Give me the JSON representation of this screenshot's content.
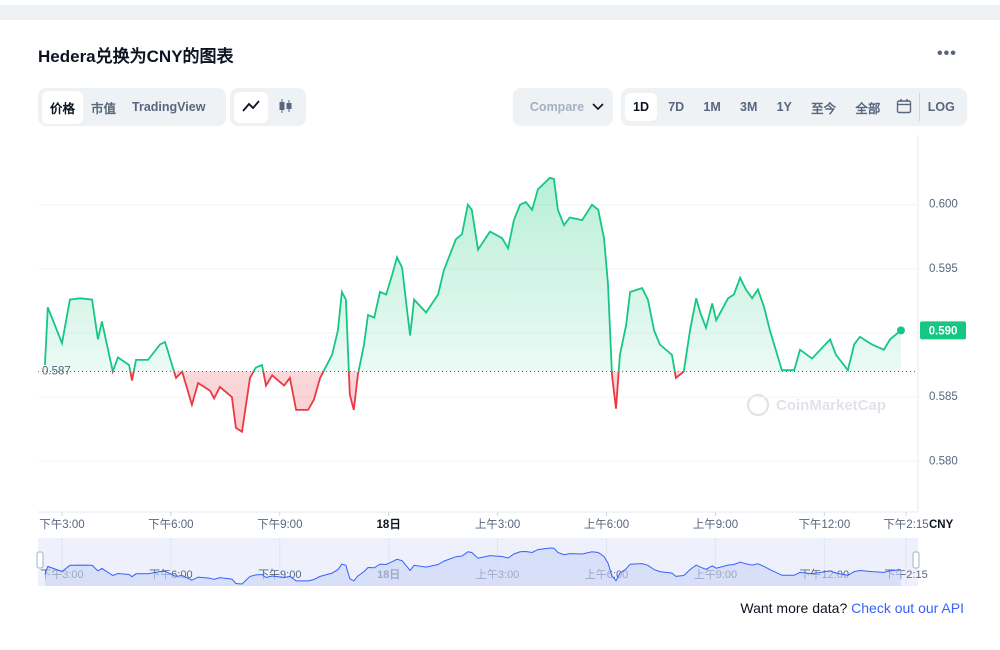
{
  "header": {
    "title": "Hedera兑换为CNY的图表"
  },
  "toolbar": {
    "tabs": [
      "价格",
      "市值",
      "TradingView"
    ],
    "compare": "Compare",
    "ranges": [
      "1D",
      "7D",
      "1M",
      "3M",
      "1Y",
      "至今",
      "全部"
    ],
    "log": "LOG"
  },
  "chart_data": {
    "type": "line",
    "x": [
      -0.47,
      -0.39,
      0,
      0.22,
      0.5,
      0.83,
      0.99,
      1.1,
      1.4,
      1.54,
      1.85,
      1.93,
      2.04,
      2.37,
      2.7,
      2.84,
      3.14,
      3.31,
      3.58,
      3.75,
      4.08,
      4.19,
      4.35,
      4.68,
      4.79,
      4.96,
      5.18,
      5.34,
      5.51,
      5.62,
      5.79,
      6.12,
      6.28,
      6.45,
      6.78,
      6.94,
      7.11,
      7.44,
      7.6,
      7.71,
      7.82,
      7.93,
      8.04,
      8.15,
      8.32,
      8.43,
      8.6,
      8.76,
      8.93,
      9.09,
      9.23,
      9.37,
      9.48,
      9.59,
      9.7,
      10.03,
      10.36,
      10.52,
      10.85,
      11.02,
      11.18,
      11.29,
      11.46,
      11.79,
      12.12,
      12.29,
      12.45,
      12.62,
      12.78,
      12.95,
      13.11,
      13.44,
      13.55,
      13.66,
      13.83,
      13.99,
      14.33,
      14.6,
      14.77,
      14.93,
      15.04,
      15.15,
      15.26,
      15.37,
      15.54,
      15.65,
      15.98,
      16.14,
      16.31,
      16.47,
      16.8,
      16.91,
      17.13,
      17.3,
      17.47,
      17.58,
      17.74,
      17.91,
      18.02,
      18.35,
      18.51,
      18.68,
      18.84,
      19.01,
      19.17,
      19.34,
      19.5,
      19.83,
      20.17,
      20.33,
      20.66,
      21.16,
      21.32,
      21.65,
      21.82,
      21.98,
      22.31,
      22.64,
      22.81,
      23.11
    ],
    "values": [
      0.5875,
      0.592,
      0.5892,
      0.5926,
      0.5927,
      0.5926,
      0.5895,
      0.5909,
      0.587,
      0.5881,
      0.5875,
      0.5863,
      0.5879,
      0.5879,
      0.5891,
      0.5893,
      0.5865,
      0.587,
      0.5844,
      0.5861,
      0.5855,
      0.5849,
      0.5858,
      0.585,
      0.5826,
      0.5823,
      0.5865,
      0.5873,
      0.5875,
      0.5859,
      0.5867,
      0.5859,
      0.5865,
      0.584,
      0.584,
      0.5848,
      0.5865,
      0.5883,
      0.5902,
      0.5932,
      0.5926,
      0.5852,
      0.584,
      0.5867,
      0.5891,
      0.5914,
      0.5912,
      0.5932,
      0.593,
      0.5945,
      0.5959,
      0.5951,
      0.5924,
      0.5898,
      0.5926,
      0.5916,
      0.593,
      0.5949,
      0.5973,
      0.5977,
      0.6,
      0.5996,
      0.5965,
      0.5979,
      0.5974,
      0.5966,
      0.5988,
      0.6,
      0.6002,
      0.5996,
      0.6012,
      0.6021,
      0.602,
      0.5996,
      0.5984,
      0.599,
      0.5988,
      0.6,
      0.5996,
      0.5974,
      0.5938,
      0.5867,
      0.5841,
      0.5883,
      0.5906,
      0.5932,
      0.5935,
      0.5926,
      0.5902,
      0.5891,
      0.5883,
      0.5865,
      0.587,
      0.5902,
      0.5927,
      0.5916,
      0.5904,
      0.5923,
      0.591,
      0.5927,
      0.593,
      0.5943,
      0.5934,
      0.5927,
      0.5934,
      0.592,
      0.5902,
      0.5871,
      0.5871,
      0.5887,
      0.588,
      0.5895,
      0.5883,
      0.5871,
      0.5891,
      0.5897,
      0.5891,
      0.5887,
      0.5895,
      0.5902
    ],
    "color_up": "#16c784",
    "color_down": "#ea3943",
    "reference": 0.587,
    "last_label": "0.590",
    "xlim": [
      -0.66,
      23.58
    ],
    "xticks": [
      {
        "value": 0,
        "label": "下午3:00"
      },
      {
        "value": 3,
        "label": "下午6:00"
      },
      {
        "value": 6,
        "label": "下午9:00"
      },
      {
        "value": 9,
        "label": "18日"
      },
      {
        "value": 12,
        "label": "上午3:00"
      },
      {
        "value": 15,
        "label": "上午6:00"
      },
      {
        "value": 18,
        "label": "上午9:00"
      },
      {
        "value": 21,
        "label": "下午12:00"
      },
      {
        "value": 23.25,
        "label": "下午2:15"
      }
    ],
    "ylim": [
      0.5762,
      0.6052
    ],
    "yticks": [
      {
        "value": 0.58,
        "label": "0.580"
      },
      {
        "value": 0.585,
        "label": "0.585"
      },
      {
        "value": 0.59,
        "label": "0.590"
      },
      {
        "value": 0.595,
        "label": "0.595"
      },
      {
        "value": 0.6,
        "label": "0.600"
      }
    ],
    "y_unit": "CNY",
    "watermark": "CoinMarketCap",
    "grid": true
  },
  "footer": {
    "text": "Want more data?",
    "link": "Check out our API"
  }
}
